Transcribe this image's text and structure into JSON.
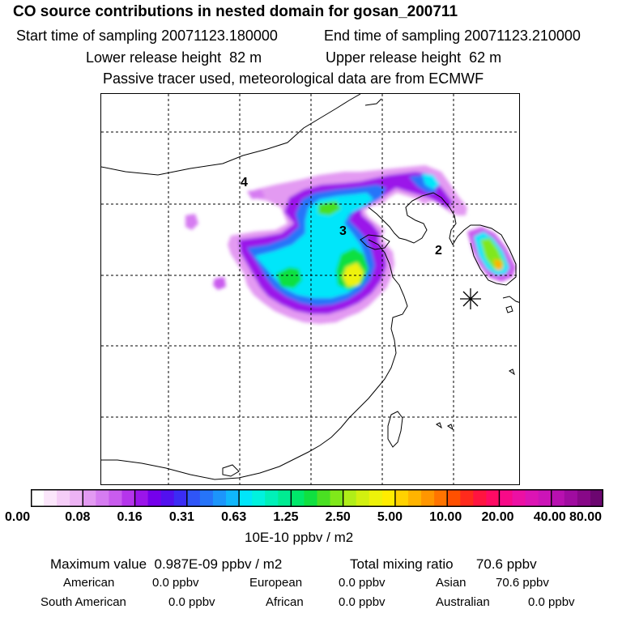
{
  "header": {
    "title": "CO  source contributions in nested domain for gosan_200711",
    "start_label": "Start time of sampling",
    "start_value": "20071123.180000",
    "end_label": "End time of sampling",
    "end_value": "20071123.210000",
    "lower_label": "Lower release height",
    "lower_value": "82 m",
    "upper_label": "Upper release height",
    "upper_value": "62 m",
    "tracer_note": "Passive tracer used, meteorological data are from ECMWF"
  },
  "map": {
    "day_labels": [
      "4",
      "3",
      "2"
    ],
    "receptor_marker": "station-star-icon"
  },
  "colorbar": {
    "tick_labels": [
      "0.00",
      "0.08",
      "0.16",
      "0.31",
      "0.63",
      "1.25",
      "2.50",
      "5.00",
      "10.00",
      "20.00",
      "40.00",
      "80.00"
    ],
    "colors": [
      "#ffffff",
      "#fbe6fb",
      "#f5cdf7",
      "#edb3f4",
      "#e39af2",
      "#d67cf1",
      "#c95cee",
      "#b535eb",
      "#9b15ea",
      "#7500eb",
      "#5210ef",
      "#3b2cf4",
      "#2f55f7",
      "#2674f9",
      "#1c95fb",
      "#10b7fc",
      "#00e6fa",
      "#00f2de",
      "#00f0b8",
      "#00ec92",
      "#00e86a",
      "#10e040",
      "#4ae022",
      "#80e81a",
      "#b0ee18",
      "#d2f010",
      "#eef20a",
      "#ffec00",
      "#ffd200",
      "#ffb400",
      "#ff9600",
      "#ff7400",
      "#ff5000",
      "#ff2a1c",
      "#ff1440",
      "#ff0a64",
      "#f80a88",
      "#ec10a4",
      "#dc14b4",
      "#cc14b8",
      "#b810b0",
      "#a00ca0",
      "#880888",
      "#6c0670"
    ],
    "unit": "10E-10 ppbv / m2"
  },
  "stats": {
    "max_label": "Maximum value",
    "max_value": "0.987E-09 ppbv / m2",
    "total_label": "Total mixing ratio",
    "total_value": "70.6 ppbv"
  },
  "sources": [
    {
      "name": "American",
      "value": "0.0 ppbv"
    },
    {
      "name": "European",
      "value": "0.0 ppbv"
    },
    {
      "name": "Asian",
      "value": "70.6 ppbv"
    },
    {
      "name": "South American",
      "value": "0.0 ppbv"
    },
    {
      "name": "African",
      "value": "0.0 ppbv"
    },
    {
      "name": "Australian",
      "value": "0.0 ppbv"
    }
  ]
}
